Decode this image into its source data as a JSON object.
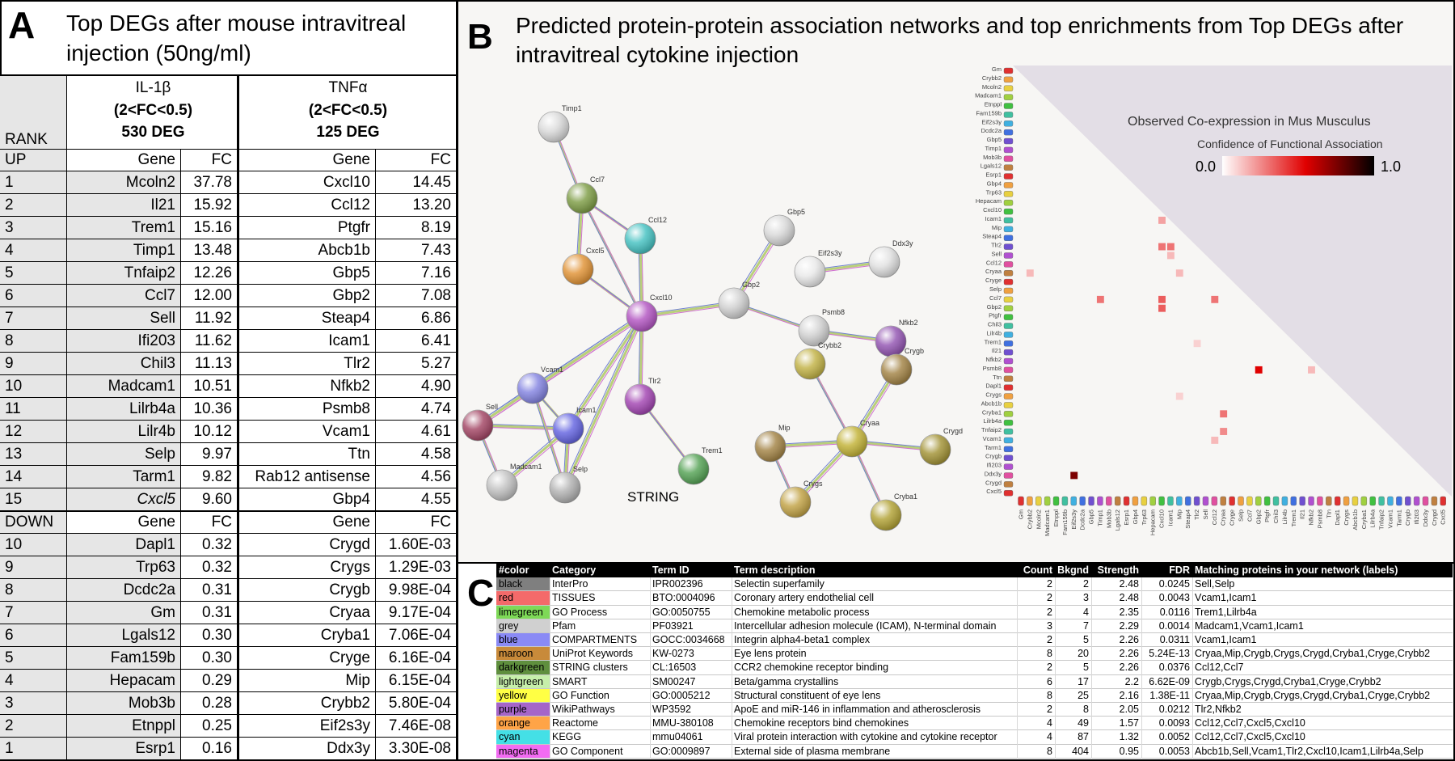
{
  "panel_a": {
    "label": "A",
    "title": "Top DEGs after mouse intravitreal injection (50ng/ml)",
    "rank_header": "RANK",
    "groups": [
      {
        "name": "IL-1β",
        "criterion": "(2<FC<0.5)",
        "deg": "530 DEG"
      },
      {
        "name": "TNFα",
        "criterion": "(2<FC<0.5)",
        "deg": "125 DEG"
      }
    ],
    "up": {
      "label": "UP",
      "headers": [
        "Gene",
        "FC",
        "Gene",
        "FC"
      ],
      "rows": [
        [
          "1",
          "Mcoln2",
          "37.78",
          "Cxcl10",
          "14.45"
        ],
        [
          "2",
          "Il21",
          "15.92",
          "Ccl12",
          "13.20"
        ],
        [
          "3",
          "Trem1",
          "15.16",
          "Ptgfr",
          "8.19"
        ],
        [
          "4",
          "Timp1",
          "13.48",
          "Abcb1b",
          "7.43"
        ],
        [
          "5",
          "Tnfaip2",
          "12.26",
          "Gbp5",
          "7.16"
        ],
        [
          "6",
          "Ccl7",
          "12.00",
          "Gbp2",
          "7.08"
        ],
        [
          "7",
          "Sell",
          "11.92",
          "Steap4",
          "6.86"
        ],
        [
          "8",
          "Ifi203",
          "11.62",
          "Icam1",
          "6.41"
        ],
        [
          "9",
          "Chil3",
          "11.13",
          "Tlr2",
          "5.27"
        ],
        [
          "10",
          "Madcam1",
          "10.51",
          "Nfkb2",
          "4.90"
        ],
        [
          "11",
          "Lilrb4a",
          "10.36",
          "Psmb8",
          "4.74"
        ],
        [
          "12",
          "Lilr4b",
          "10.12",
          "Vcam1",
          "4.61"
        ],
        [
          "13",
          "Selp",
          "9.97",
          "Ttn",
          "4.58"
        ],
        [
          "14",
          "Tarm1",
          "9.82",
          "Rab12 antisense",
          "4.56"
        ],
        [
          "15",
          "Cxcl5",
          "9.60",
          "Gbp4",
          "4.55"
        ]
      ]
    },
    "down": {
      "label": "DOWN",
      "headers": [
        "Gene",
        "FC",
        "Gene",
        "FC"
      ],
      "rows": [
        [
          "10",
          "Dapl1",
          "0.32",
          "Crygd",
          "1.60E-03"
        ],
        [
          "9",
          "Trp63",
          "0.32",
          "Crygs",
          "1.29E-03"
        ],
        [
          "8",
          "Dcdc2a",
          "0.31",
          "Crygb",
          "9.98E-04"
        ],
        [
          "7",
          "Gm",
          "0.31",
          "Cryaa",
          "9.17E-04"
        ],
        [
          "6",
          "Lgals12",
          "0.30",
          "Cryba1",
          "7.06E-04"
        ],
        [
          "5",
          "Fam159b",
          "0.30",
          "Cryge",
          "6.16E-04"
        ],
        [
          "4",
          "Hepacam",
          "0.29",
          "Mip",
          "6.15E-04"
        ],
        [
          "3",
          "Mob3b",
          "0.28",
          "Crybb2",
          "5.80E-04"
        ],
        [
          "2",
          "Etnppl",
          "0.25",
          "Eif2s3y",
          "7.46E-08"
        ],
        [
          "1",
          "Esrp1",
          "0.16",
          "Ddx3y",
          "3.30E-08"
        ]
      ]
    }
  },
  "panel_b": {
    "label": "B",
    "title": "Predicted protein-protein association networks and top enrichments from Top DEGs after intravitreal cytokine injection",
    "network": {
      "label": "STRING",
      "nodes": [
        "Timp1",
        "Ccl7",
        "Ccl12",
        "Cxcl5",
        "Cxcl10",
        "Gbp5",
        "Eif2s3y",
        "Ddx3y",
        "Gbp2",
        "Psmb8",
        "Nfkb2",
        "Crybb2",
        "Crygb",
        "Vcam1",
        "Tlr2",
        "Sell",
        "Icam1",
        "Trem1",
        "Mip",
        "Cryaa",
        "Crygd",
        "Madcam1",
        "Selp",
        "Crygs",
        "Cryba1"
      ]
    },
    "heatmap": {
      "title": "Observed Co-expression in Mus Musculus",
      "legend_title": "Confidence of Functional Association",
      "colorbar_ticks": [
        {
          "value": 0,
          "label": "0.0"
        },
        {
          "value": 1,
          "label": "1.0"
        }
      ],
      "genes": [
        "Gm",
        "Crybb2",
        "Mcoln2",
        "Madcam1",
        "Etnppl",
        "Fam159b",
        "Eif2s3y",
        "Dcdc2a",
        "Gbp5",
        "Timp1",
        "Mob3b",
        "Lgals12",
        "Esrp1",
        "Gbp4",
        "Trp63",
        "Hepacam",
        "Cxcl10",
        "Icam1",
        "Mip",
        "Steap4",
        "Tlr2",
        "Sell",
        "Ccl12",
        "Cryaa",
        "Cryge",
        "Selp",
        "Ccl7",
        "Gbp2",
        "Ptgfr",
        "Chil3",
        "Lilr4b",
        "Trem1",
        "Il21",
        "Nfkb2",
        "Psmb8",
        "Ttn",
        "Dapl1",
        "Crygs",
        "Abcb1b",
        "Cryba1",
        "Lilrb4a",
        "Tnfaip2",
        "Vcam1",
        "Tarm1",
        "Crygb",
        "Ifi203",
        "Ddx3y",
        "Crygd",
        "Cxcl5"
      ],
      "cells": [
        {
          "row": "Icam1",
          "col": "Cxcl10",
          "value": 0.2
        },
        {
          "row": "Tlr2",
          "col": "Cxcl10",
          "value": 0.3
        },
        {
          "row": "Tlr2",
          "col": "Icam1",
          "value": 0.3
        },
        {
          "row": "Sell",
          "col": "Icam1",
          "value": 0.15
        },
        {
          "row": "Cryaa",
          "col": "Crybb2",
          "value": 0.15
        },
        {
          "row": "Cryaa",
          "col": "Mip",
          "value": 0.15
        },
        {
          "row": "Ccl7",
          "col": "Timp1",
          "value": 0.3
        },
        {
          "row": "Ccl7",
          "col": "Cxcl10",
          "value": 0.35
        },
        {
          "row": "Ccl7",
          "col": "Ccl12",
          "value": 0.3
        },
        {
          "row": "Gbp2",
          "col": "Cxcl10",
          "value": 0.35
        },
        {
          "row": "Trem1",
          "col": "Tlr2",
          "value": 0.1
        },
        {
          "row": "Psmb8",
          "col": "Gbp2",
          "value": 0.55
        },
        {
          "row": "Psmb8",
          "col": "Nfkb2",
          "value": 0.15
        },
        {
          "row": "Crygs",
          "col": "Mip",
          "value": 0.1
        },
        {
          "row": "Cryba1",
          "col": "Cryaa",
          "value": 0.3
        },
        {
          "row": "Tnfaip2",
          "col": "Cryaa",
          "value": 0.25
        },
        {
          "row": "Vcam1",
          "col": "Ccl12",
          "value": 0.15
        },
        {
          "row": "Ddx3y",
          "col": "Eif2s3y",
          "value": 0.75
        }
      ]
    }
  },
  "panel_c": {
    "label": "C",
    "headers": [
      "#color",
      "Category",
      "Term ID",
      "Term description",
      "Count",
      "Bkgnd",
      "Strength",
      "FDR",
      "Matching proteins in your network (labels)"
    ],
    "swatches": [
      "#7f7f7f",
      "#f46a6a",
      "#7ed957",
      "#d0d0d0",
      "#8a8af5",
      "#c88a3a",
      "#5f8f3e",
      "#c6efaa",
      "#ffff44",
      "#a565c8",
      "#ffa447",
      "#44e0e6",
      "#f26bf2"
    ],
    "rows": [
      [
        "black",
        "InterPro",
        "IPR002396",
        "Selectin superfamily",
        "2",
        "2",
        "2.48",
        "0.0245",
        "Sell,Selp"
      ],
      [
        "red",
        "TISSUES",
        "BTO:0004096",
        "Coronary artery endothelial cell",
        "2",
        "3",
        "2.48",
        "0.0043",
        "Vcam1,Icam1"
      ],
      [
        "limegreen",
        "GO Process",
        "GO:0050755",
        "Chemokine metabolic process",
        "2",
        "4",
        "2.35",
        "0.0116",
        "Trem1,Lilrb4a"
      ],
      [
        "grey",
        "Pfam",
        "PF03921",
        "Intercellular adhesion molecule (ICAM), N-terminal domain",
        "3",
        "7",
        "2.29",
        "0.0014",
        "Madcam1,Vcam1,Icam1"
      ],
      [
        "blue",
        "COMPARTMENTS",
        "GOCC:0034668",
        "Integrin alpha4-beta1 complex",
        "2",
        "5",
        "2.26",
        "0.0311",
        "Vcam1,Icam1"
      ],
      [
        "maroon",
        "UniProt Keywords",
        "KW-0273",
        "Eye lens protein",
        "8",
        "20",
        "2.26",
        "5.24E-13",
        "Cryaa,Mip,Crygb,Crygs,Crygd,Cryba1,Cryge,Crybb2"
      ],
      [
        "darkgreen",
        "STRING clusters",
        "CL:16503",
        "CCR2 chemokine receptor binding",
        "2",
        "5",
        "2.26",
        "0.0376",
        "Ccl12,Ccl7"
      ],
      [
        "lightgreen",
        "SMART",
        "SM00247",
        "Beta/gamma crystallins",
        "6",
        "17",
        "2.2",
        "6.62E-09",
        "Crygb,Crygs,Crygd,Cryba1,Cryge,Crybb2"
      ],
      [
        "yellow",
        "GO Function",
        "GO:0005212",
        "Structural constituent of eye lens",
        "8",
        "25",
        "2.16",
        "1.38E-11",
        "Cryaa,Mip,Crygb,Crygs,Crygd,Cryba1,Cryge,Crybb2"
      ],
      [
        "purple",
        "WikiPathways",
        "WP3592",
        "ApoE and miR-146 in inflammation and atherosclerosis",
        "2",
        "8",
        "2.05",
        "0.0212",
        "Tlr2,Nfkb2"
      ],
      [
        "orange",
        "Reactome",
        "MMU-380108",
        "Chemokine receptors bind chemokines",
        "4",
        "49",
        "1.57",
        "0.0093",
        "Ccl12,Ccl7,Cxcl5,Cxcl10"
      ],
      [
        "cyan",
        "KEGG",
        "mmu04061",
        "Viral protein interaction with cytokine and cytokine receptor",
        "4",
        "87",
        "1.32",
        "0.0052",
        "Ccl12,Ccl7,Cxcl5,Cxcl10"
      ],
      [
        "magenta",
        "GO Component",
        "GO:0009897",
        "External side of plasma membrane",
        "8",
        "404",
        "0.95",
        "0.0053",
        "Abcb1b,Sell,Vcam1,Tlr2,Cxcl10,Icam1,Lilrb4a,Selp"
      ]
    ]
  }
}
